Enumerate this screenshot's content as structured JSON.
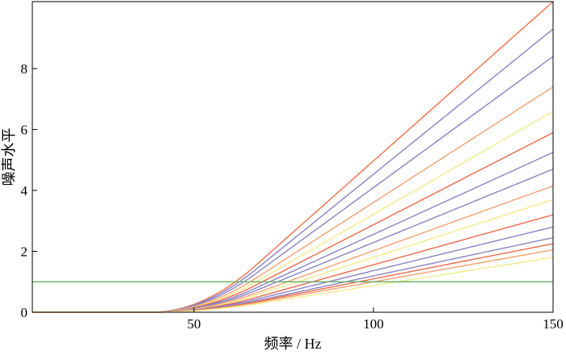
{
  "chart_data": {
    "type": "line",
    "title": "",
    "xlabel": "频率 / Hz",
    "ylabel": "噪声水平",
    "xlim": [
      5,
      150
    ],
    "ylim": [
      0,
      10.2
    ],
    "xticks": [
      50,
      100,
      150
    ],
    "yticks": [
      0,
      2,
      4,
      6,
      8
    ],
    "grid": false,
    "legend": "none",
    "ramp_start": 38,
    "ramp_knee": 67,
    "reference_line": {
      "value": 1.0,
      "color": "#6db36d"
    },
    "curves": [
      {
        "end_value": 10.2,
        "color": "#f0704a"
      },
      {
        "end_value": 9.3,
        "color": "#8a83c4"
      },
      {
        "end_value": 8.4,
        "color": "#8a83c4"
      },
      {
        "end_value": 7.4,
        "color": "#f7a070"
      },
      {
        "end_value": 6.6,
        "color": "#f2ea8c"
      },
      {
        "end_value": 5.9,
        "color": "#ef6a4a"
      },
      {
        "end_value": 5.25,
        "color": "#8a83c4"
      },
      {
        "end_value": 4.7,
        "color": "#8a83c4"
      },
      {
        "end_value": 4.15,
        "color": "#f7a070"
      },
      {
        "end_value": 3.7,
        "color": "#f2ea8c"
      },
      {
        "end_value": 3.2,
        "color": "#ef6a4a"
      },
      {
        "end_value": 2.8,
        "color": "#8a83c4"
      },
      {
        "end_value": 2.45,
        "color": "#8a83c4"
      },
      {
        "end_value": 2.25,
        "color": "#ef6a4a"
      },
      {
        "end_value": 2.05,
        "color": "#f7a070"
      },
      {
        "end_value": 1.8,
        "color": "#f2ea8c"
      }
    ]
  }
}
